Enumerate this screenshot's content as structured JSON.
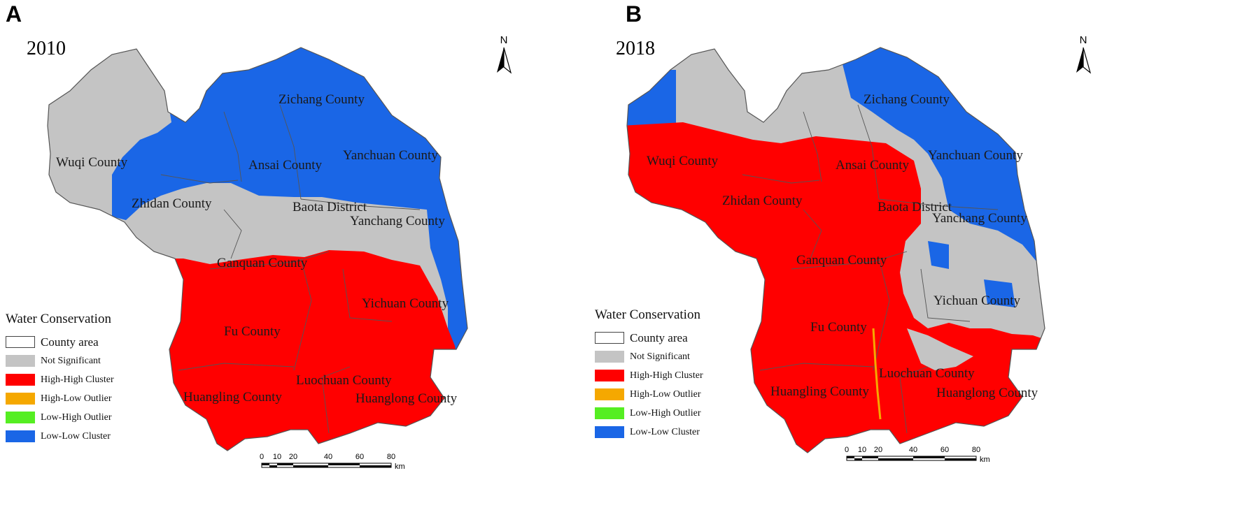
{
  "panels": [
    {
      "letter": "A",
      "year": "2010",
      "counties": [
        "Wuqi County",
        "Zichang County",
        "Ansai County",
        "Yanchuan County",
        "Zhidan County",
        "Baota District",
        "Yanchang County",
        "Ganquan County",
        "Yichuan County",
        "Fu County",
        "Huangling County",
        "Luochuan County",
        "Huanglong County"
      ]
    },
    {
      "letter": "B",
      "year": "2018",
      "counties": [
        "Wuqi County",
        "Zichang County",
        "Ansai County",
        "Yanchuan County",
        "Zhidan County",
        "Baota District",
        "Yanchang County",
        "Ganquan County",
        "Yichuan County",
        "Fu County",
        "Huangling County",
        "Luochuan County",
        "Huanglong County"
      ]
    }
  ],
  "legend": {
    "title": "Water Conservation",
    "items": [
      {
        "label": "County area",
        "color": "#ffffff"
      },
      {
        "label": "Not Significant",
        "color": "#c4c4c4"
      },
      {
        "label": "High-High Cluster",
        "color": "#ff0000"
      },
      {
        "label": "High-Low Outlier",
        "color": "#f5a800"
      },
      {
        "label": "Low-High Outlier",
        "color": "#55ee22"
      },
      {
        "label": "Low-Low Cluster",
        "color": "#1a66e6"
      }
    ]
  },
  "north_label": "N",
  "scale": {
    "ticks": [
      "0",
      "10",
      "20",
      "40",
      "60",
      "80"
    ],
    "unit": "km"
  }
}
